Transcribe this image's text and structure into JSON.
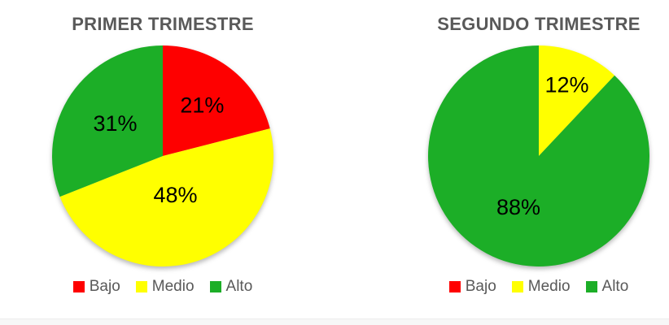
{
  "page": {
    "background": "#ffffff",
    "title_text_color": "#595959",
    "legend_text_color": "#595959",
    "label_text_color": "#000000"
  },
  "legend": {
    "items": [
      {
        "label": "Bajo",
        "color": "#fe0000"
      },
      {
        "label": "Medio",
        "color": "#ffff00"
      },
      {
        "label": "Alto",
        "color": "#1cae27"
      }
    ]
  },
  "chart_data": [
    {
      "type": "pie",
      "title": "PRIMER TRIMESTRE",
      "categories": [
        "Bajo",
        "Medio",
        "Alto"
      ],
      "values": [
        21,
        48,
        31
      ],
      "labels": [
        "21%",
        "48%",
        "31%"
      ],
      "colors": [
        "#fe0000",
        "#ffff00",
        "#1cae27"
      ],
      "start_angle_deg": 0,
      "direction": "clockwise",
      "label_radius_frac": [
        0.58,
        0.37,
        0.52
      ],
      "legend_position": "bottom",
      "grid": false
    },
    {
      "type": "pie",
      "title": "SEGUNDO TRIMESTRE",
      "categories": [
        "Bajo",
        "Medio",
        "Alto"
      ],
      "values": [
        0,
        12,
        88
      ],
      "labels": [
        "",
        "12%",
        "88%"
      ],
      "colors": [
        "#fe0000",
        "#ffff00",
        "#1cae27"
      ],
      "start_angle_deg": 0,
      "direction": "clockwise",
      "label_radius_frac": [
        0.55,
        0.69,
        0.5
      ],
      "legend_position": "bottom",
      "grid": false
    }
  ]
}
